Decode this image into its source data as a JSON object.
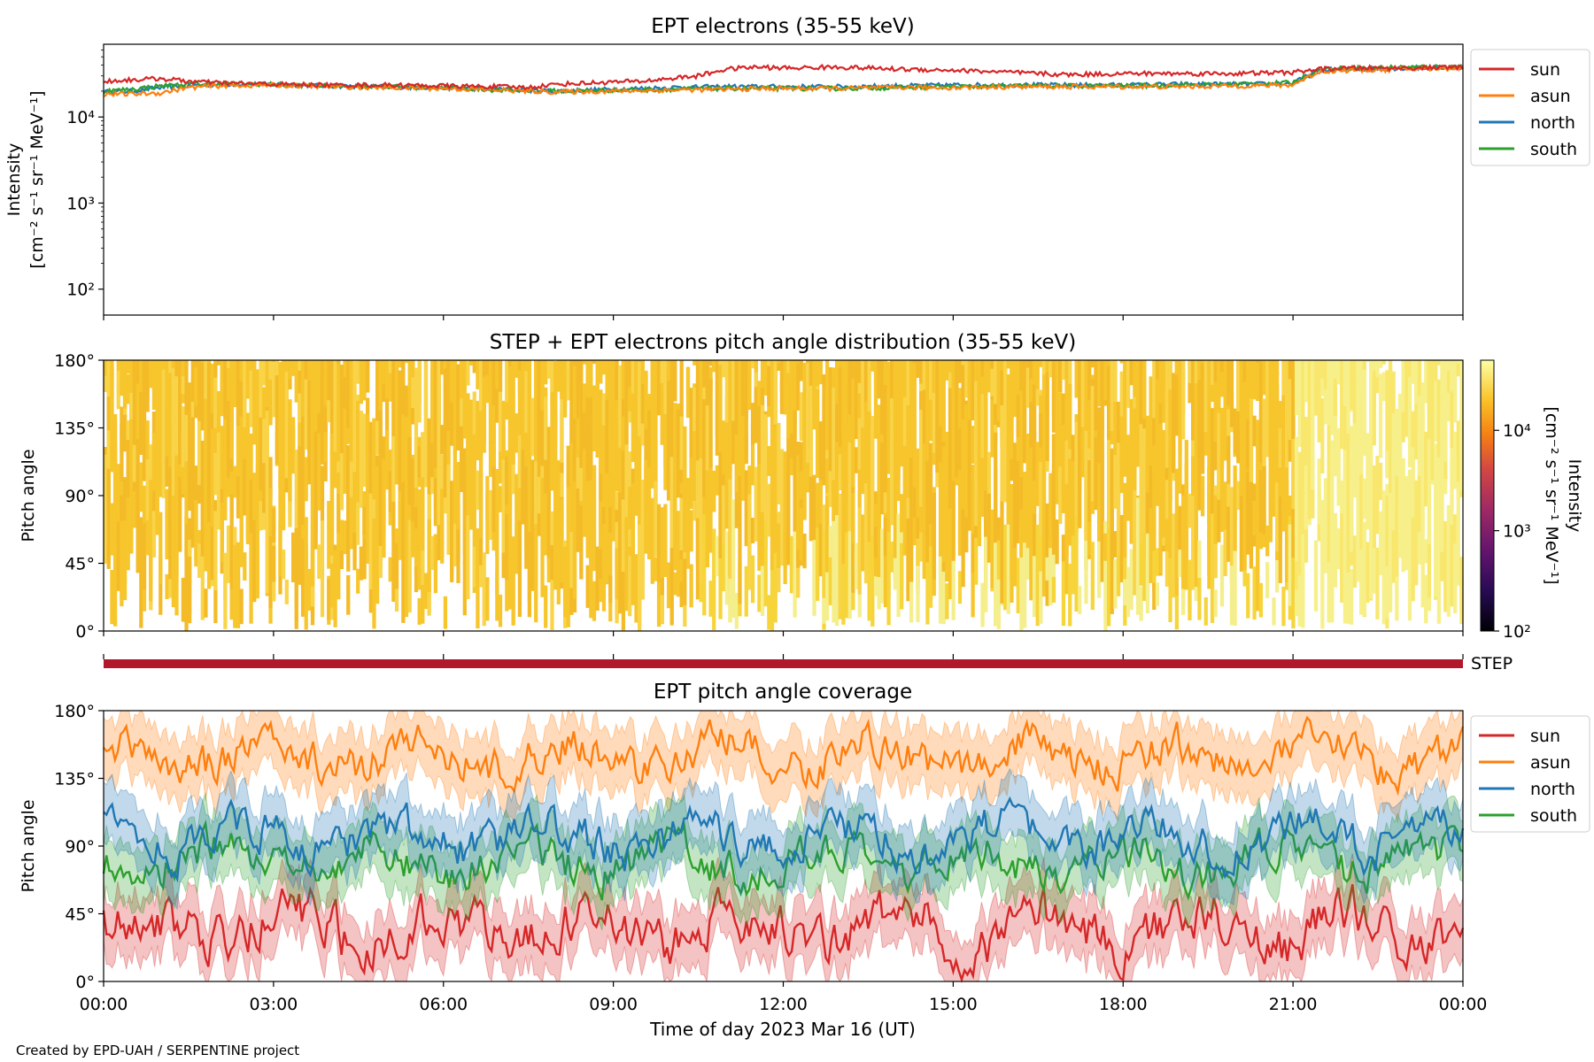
{
  "footer": "Created by EPD-UAH / SERPENTINE project",
  "x_axis": {
    "label": "Time of day 2023 Mar 16 (UT)",
    "ticks": [
      "00:00",
      "03:00",
      "06:00",
      "09:00",
      "12:00",
      "15:00",
      "18:00",
      "21:00",
      "00:00"
    ]
  },
  "colors": {
    "sun": "#d62728",
    "asun": "#ff7f0e",
    "north": "#1f77b4",
    "south": "#2ca02c",
    "step_bar": "#b2182b"
  },
  "chart_data": [
    {
      "type": "line",
      "title": "EPT electrons (35-55 keV)",
      "ylabel_line1": "Intensity",
      "ylabel_line2": "[cm⁻² s⁻¹ sr⁻¹ MeV⁻¹]",
      "yscale": "log",
      "ylim": [
        50,
        70000
      ],
      "yticks": [
        {
          "value": 100,
          "label": "10²"
        },
        {
          "value": 1000,
          "label": "10³"
        },
        {
          "value": 10000,
          "label": "10⁴"
        }
      ],
      "xlim_hours": [
        0,
        24
      ],
      "legend": {
        "position": "outside-right-top",
        "entries": [
          "sun",
          "asun",
          "north",
          "south"
        ]
      },
      "series": [
        {
          "name": "sun",
          "color": "#d62728",
          "x_hours": [
            0,
            0.5,
            1,
            1.5,
            2,
            3,
            4,
            5,
            6,
            7,
            7.5,
            8,
            9,
            9.5,
            10,
            10.5,
            11,
            11.5,
            12,
            13,
            14,
            15,
            16,
            17,
            18,
            19,
            20,
            21,
            21.5,
            22,
            23,
            24
          ],
          "y": [
            26000,
            27000,
            28000,
            26000,
            25000,
            24000,
            23500,
            23500,
            23000,
            22500,
            22000,
            24000,
            25500,
            26000,
            28000,
            30000,
            36000,
            38000,
            37000,
            38000,
            36000,
            35000,
            33000,
            31000,
            32000,
            32000,
            32000,
            33000,
            36000,
            37000,
            37000,
            38000
          ]
        },
        {
          "name": "asun",
          "color": "#ff7f0e",
          "x_hours": [
            0,
            0.5,
            1,
            1.5,
            2,
            3,
            4,
            5,
            6,
            7,
            8,
            9,
            10,
            11,
            12,
            13,
            14,
            15,
            16,
            17,
            18,
            19,
            20,
            21,
            21.5,
            22,
            23,
            24
          ],
          "y": [
            18500,
            18500,
            19000,
            22000,
            23000,
            23500,
            22500,
            22000,
            21500,
            20500,
            19500,
            20000,
            20500,
            21000,
            21500,
            21500,
            22000,
            22000,
            22500,
            22500,
            22500,
            22500,
            23000,
            23500,
            34000,
            35000,
            36000,
            37000
          ]
        },
        {
          "name": "north",
          "color": "#1f77b4",
          "x_hours": [
            0,
            0.5,
            1,
            1.5,
            2,
            3,
            4,
            5,
            6,
            7,
            8,
            9,
            10,
            11,
            12,
            13,
            14,
            15,
            16,
            17,
            18,
            19,
            20,
            21,
            21.5,
            22,
            23,
            24
          ],
          "y": [
            19500,
            20000,
            22000,
            23000,
            24000,
            24000,
            23000,
            22500,
            22000,
            21000,
            20000,
            21000,
            22000,
            22500,
            22500,
            22500,
            23000,
            23500,
            23500,
            23500,
            23500,
            24000,
            24000,
            24500,
            35000,
            36000,
            37000,
            38000
          ]
        },
        {
          "name": "south",
          "color": "#2ca02c",
          "x_hours": [
            0,
            0.5,
            1,
            1.5,
            2,
            3,
            4,
            5,
            6,
            7,
            8,
            9,
            10,
            11,
            12,
            13,
            14,
            15,
            16,
            17,
            18,
            19,
            20,
            21,
            21.5,
            22,
            23,
            24
          ],
          "y": [
            20000,
            21000,
            23000,
            24000,
            24500,
            24000,
            23000,
            22500,
            22000,
            20500,
            20000,
            20500,
            21000,
            21500,
            21500,
            21500,
            22000,
            22500,
            23000,
            23000,
            23000,
            23500,
            24000,
            25000,
            36000,
            37000,
            38000,
            38500
          ]
        }
      ]
    },
    {
      "type": "heatmap",
      "title": "STEP + EPT electrons pitch angle distribution (35-55 keV)",
      "ylabel": "Pitch angle",
      "ylim": [
        0,
        180
      ],
      "yticks": [
        "0°",
        "45°",
        "90°",
        "135°",
        "180°"
      ],
      "xlim_hours": [
        0,
        24
      ],
      "colorbar": {
        "label": "Intensity",
        "units": "[cm⁻² s⁻¹ sr⁻¹ MeV⁻¹]",
        "scale": "log",
        "range": [
          100,
          50000
        ],
        "ticks": [
          "10²",
          "10³",
          "10⁴"
        ],
        "colormap": "inferno"
      },
      "note": "Dense fill of roughly 20000–40000 intensity (yellow-orange) across all pitch angles; lighter yellow at low pitch angles after ~10:30 and at all angles after ~21:00"
    },
    {
      "type": "bar",
      "label": "STEP",
      "coverage_hours": [
        0,
        24
      ]
    },
    {
      "type": "line",
      "title": "EPT pitch angle coverage",
      "ylabel": "Pitch angle",
      "ylim": [
        0,
        180
      ],
      "yticks": [
        "0°",
        "45°",
        "90°",
        "135°",
        "180°"
      ],
      "xlim_hours": [
        0,
        24
      ],
      "legend": {
        "position": "outside-right-top",
        "entries": [
          "sun",
          "asun",
          "north",
          "south"
        ]
      },
      "series": [
        {
          "name": "sun",
          "color": "#d62728",
          "mean": 35,
          "spread": 25,
          "band": 20
        },
        {
          "name": "asun",
          "color": "#ff7f0e",
          "mean": 150,
          "spread": 20,
          "band": 20
        },
        {
          "name": "north",
          "color": "#1f77b4",
          "mean": 95,
          "spread": 20,
          "band": 20
        },
        {
          "name": "south",
          "color": "#2ca02c",
          "mean": 80,
          "spread": 20,
          "band": 20
        }
      ]
    }
  ]
}
